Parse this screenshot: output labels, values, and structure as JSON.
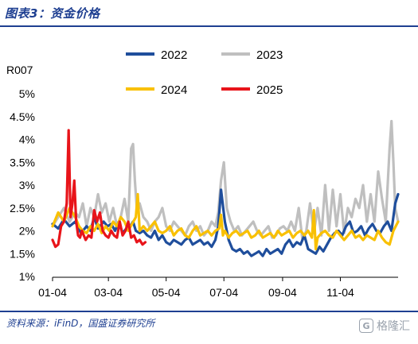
{
  "header": {
    "title": "图表3：资金价格"
  },
  "footer": {
    "source": "资料来源：iFinD，国盛证券研究所",
    "watermark": "格隆汇",
    "watermark_glyph": "G"
  },
  "chart_data": {
    "type": "line",
    "ylabel": "R007",
    "ylim": [
      1,
      5
    ],
    "y_ticks": [
      "1%",
      "1.5%",
      "2%",
      "2.5%",
      "3%",
      "3.5%",
      "4%",
      "4.5%",
      "5%"
    ],
    "y_tick_values": [
      1,
      1.5,
      2,
      2.5,
      3,
      3.5,
      4,
      4.5,
      5
    ],
    "x_ticks": [
      "01-04",
      "03-04",
      "05-04",
      "07-04",
      "09-04",
      "11-04"
    ],
    "x_tick_days": [
      0,
      59,
      120,
      181,
      243,
      304
    ],
    "xlim_days": [
      0,
      365
    ],
    "x_unit": "day of year counted from 01-04",
    "grid": false,
    "legend_position": "top",
    "colors": {
      "2022": "#1f4e9c",
      "2023": "#bfbfbf",
      "2024": "#f9c000",
      "2025": "#e8141a"
    },
    "series": [
      {
        "name": "2022",
        "x": [
          0,
          6,
          12,
          18,
          24,
          30,
          36,
          40,
          44,
          48,
          54,
          58,
          62,
          66,
          70,
          74,
          78,
          82,
          85,
          88,
          92,
          96,
          100,
          104,
          108,
          112,
          116,
          120,
          124,
          128,
          132,
          136,
          140,
          144,
          148,
          152,
          156,
          160,
          164,
          168,
          172,
          175,
          178,
          182,
          186,
          190,
          194,
          198,
          202,
          206,
          210,
          214,
          218,
          222,
          226,
          230,
          234,
          238,
          242,
          246,
          250,
          254,
          258,
          262,
          266,
          270,
          274,
          278,
          282,
          286,
          290,
          294,
          298,
          302,
          306,
          310,
          314,
          318,
          322,
          326,
          330,
          334,
          338,
          342,
          346,
          350,
          354,
          358,
          362,
          365
        ],
        "values": [
          2.15,
          2.05,
          2.25,
          2.1,
          2.2,
          1.95,
          2.1,
          2.0,
          2.3,
          2.05,
          2.2,
          2.1,
          2.15,
          2.0,
          2.2,
          1.95,
          2.05,
          2.1,
          2.2,
          2.0,
          1.95,
          2.0,
          1.9,
          1.85,
          2.0,
          1.8,
          1.9,
          1.75,
          1.7,
          1.8,
          1.75,
          1.7,
          1.8,
          1.85,
          1.7,
          1.75,
          1.8,
          1.7,
          1.75,
          1.65,
          1.8,
          2.1,
          2.9,
          2.2,
          1.8,
          1.6,
          1.55,
          1.6,
          1.5,
          1.55,
          1.45,
          1.5,
          1.55,
          1.45,
          1.6,
          1.5,
          1.55,
          1.6,
          1.5,
          1.7,
          1.8,
          1.65,
          1.75,
          1.7,
          1.9,
          1.6,
          1.55,
          1.5,
          1.65,
          1.55,
          1.7,
          1.85,
          1.95,
          2.0,
          1.9,
          2.1,
          2.2,
          1.95,
          2.0,
          2.1,
          1.9,
          2.05,
          2.15,
          2.0,
          1.95,
          2.1,
          2.2,
          2.0,
          2.6,
          2.8
        ]
      },
      {
        "name": "2023",
        "x": [
          0,
          6,
          12,
          18,
          24,
          28,
          32,
          36,
          40,
          44,
          48,
          52,
          56,
          60,
          64,
          68,
          72,
          76,
          80,
          83,
          85,
          87,
          89,
          92,
          96,
          100,
          104,
          108,
          112,
          116,
          120,
          124,
          128,
          132,
          136,
          140,
          144,
          148,
          152,
          156,
          160,
          164,
          168,
          172,
          175,
          178,
          181,
          184,
          188,
          192,
          196,
          200,
          204,
          208,
          212,
          216,
          220,
          224,
          228,
          232,
          236,
          240,
          244,
          248,
          252,
          256,
          260,
          264,
          268,
          272,
          276,
          280,
          284,
          288,
          292,
          296,
          300,
          304,
          308,
          312,
          316,
          320,
          324,
          328,
          332,
          336,
          340,
          344,
          348,
          352,
          356,
          358,
          360,
          362,
          365
        ],
        "values": [
          2.1,
          2.3,
          2.5,
          2.2,
          2.4,
          2.3,
          2.6,
          2.1,
          2.5,
          2.3,
          2.8,
          2.4,
          2.6,
          2.2,
          2.5,
          2.1,
          2.3,
          2.7,
          2.2,
          3.8,
          3.9,
          3.1,
          2.5,
          2.6,
          2.3,
          2.2,
          2.0,
          2.2,
          2.3,
          2.5,
          2.1,
          2.0,
          2.2,
          2.1,
          2.0,
          1.9,
          2.1,
          2.2,
          2.0,
          2.1,
          1.9,
          2.0,
          2.2,
          2.1,
          2.4,
          3.1,
          3.5,
          2.5,
          2.2,
          2.0,
          2.1,
          1.9,
          2.0,
          2.1,
          2.2,
          2.0,
          1.9,
          2.0,
          2.1,
          1.85,
          1.9,
          2.05,
          2.1,
          2.0,
          2.2,
          2.0,
          2.5,
          1.8,
          2.0,
          2.6,
          1.95,
          2.5,
          1.9,
          3.0,
          2.0,
          2.9,
          2.1,
          2.8,
          1.95,
          2.5,
          2.3,
          2.7,
          2.5,
          3.0,
          2.2,
          2.8,
          2.2,
          3.3,
          2.7,
          2.2,
          3.8,
          4.4,
          3.5,
          2.5,
          2.2
        ]
      },
      {
        "name": "2024",
        "x": [
          0,
          6,
          12,
          18,
          24,
          28,
          32,
          36,
          40,
          44,
          48,
          52,
          56,
          60,
          64,
          68,
          72,
          76,
          80,
          84,
          88,
          90,
          92,
          96,
          100,
          104,
          108,
          112,
          116,
          120,
          124,
          128,
          132,
          136,
          140,
          144,
          148,
          152,
          156,
          160,
          164,
          168,
          172,
          176,
          178,
          180,
          182,
          186,
          190,
          194,
          198,
          202,
          206,
          210,
          214,
          218,
          222,
          226,
          230,
          234,
          238,
          242,
          246,
          250,
          254,
          258,
          262,
          266,
          270,
          274,
          276,
          278,
          280,
          284,
          288,
          292,
          296,
          300,
          304,
          308,
          312,
          316,
          320,
          324,
          328,
          332,
          336,
          340,
          344,
          348,
          352,
          356,
          360,
          365
        ],
        "values": [
          2.1,
          2.4,
          2.2,
          2.5,
          2.3,
          2.1,
          2.0,
          1.95,
          2.1,
          2.0,
          2.15,
          1.95,
          2.1,
          2.0,
          2.2,
          2.1,
          2.3,
          2.2,
          2.0,
          2.15,
          2.3,
          2.8,
          2.0,
          2.1,
          2.0,
          2.1,
          2.2,
          2.0,
          1.95,
          2.0,
          2.1,
          1.9,
          2.0,
          2.05,
          1.9,
          1.85,
          2.0,
          2.1,
          1.9,
          1.95,
          2.0,
          1.9,
          2.0,
          2.05,
          2.35,
          1.9,
          2.0,
          1.85,
          1.95,
          2.0,
          1.9,
          1.95,
          2.0,
          1.85,
          1.9,
          2.0,
          1.85,
          1.9,
          1.95,
          1.85,
          2.0,
          1.9,
          1.95,
          2.0,
          1.85,
          1.95,
          2.0,
          1.9,
          2.0,
          1.85,
          2.45,
          1.6,
          1.85,
          1.95,
          2.0,
          1.9,
          1.85,
          2.0,
          1.9,
          1.8,
          1.9,
          2.0,
          1.85,
          1.9,
          1.8,
          1.9,
          1.85,
          1.8,
          2.0,
          1.85,
          1.75,
          1.7,
          2.0,
          2.2
        ]
      },
      {
        "name": "2025",
        "x": [
          0,
          3,
          6,
          9,
          12,
          15,
          17,
          19,
          21,
          23,
          25,
          27,
          29,
          31,
          33,
          35,
          38,
          41,
          44,
          47,
          50,
          53,
          56,
          59,
          62,
          65,
          68,
          71,
          74,
          77,
          80,
          83,
          86,
          89,
          92,
          95,
          98
        ],
        "values": [
          1.8,
          1.65,
          1.7,
          2.1,
          2.2,
          2.6,
          4.2,
          2.3,
          2.6,
          3.1,
          2.2,
          1.9,
          1.85,
          2.0,
          1.9,
          1.8,
          1.9,
          1.85,
          2.45,
          2.2,
          2.4,
          2.0,
          1.9,
          1.85,
          2.0,
          1.9,
          1.85,
          2.2,
          1.9,
          2.0,
          2.2,
          1.85,
          1.9,
          1.75,
          1.8,
          1.7,
          1.75
        ]
      }
    ]
  }
}
